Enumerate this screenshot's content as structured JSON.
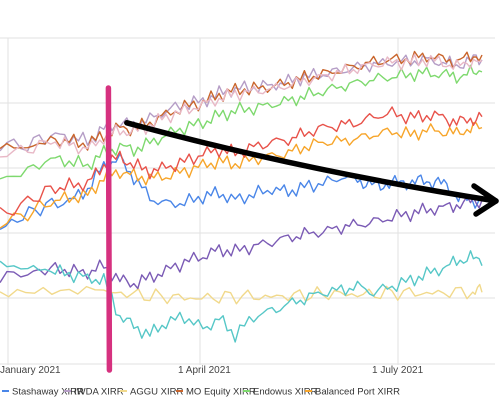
{
  "chart_data": {
    "type": "line",
    "title": "",
    "xlabel": "",
    "ylabel": "",
    "grid": true,
    "x_tick_labels": [
      "January 2021",
      "1 April 2021",
      "1 July 2021"
    ],
    "x_domain": [
      "2021-01-11",
      "2021-08-11"
    ],
    "y_domain": [
      -0.06,
      0.21
    ],
    "legend_position": "bottom",
    "series": [
      {
        "name": "Stashaway XIRR",
        "color": "#4a86e8",
        "points": [
          [
            0,
            0.052
          ],
          [
            10,
            0.063
          ],
          [
            20,
            0.072
          ],
          [
            30,
            0.075
          ],
          [
            38,
            0.085
          ],
          [
            45,
            0.105
          ],
          [
            52,
            0.11
          ],
          [
            58,
            0.095
          ],
          [
            65,
            0.078
          ],
          [
            72,
            0.073
          ],
          [
            80,
            0.074
          ],
          [
            88,
            0.079
          ],
          [
            95,
            0.082
          ],
          [
            102,
            0.076
          ],
          [
            110,
            0.081
          ],
          [
            118,
            0.085
          ],
          [
            125,
            0.083
          ],
          [
            132,
            0.087
          ],
          [
            140,
            0.09
          ],
          [
            148,
            0.095
          ],
          [
            155,
            0.093
          ],
          [
            160,
            0.089
          ],
          [
            165,
            0.088
          ],
          [
            170,
            0.091
          ],
          [
            175,
            0.09
          ],
          [
            180,
            0.092
          ],
          [
            185,
            0.091
          ],
          [
            190,
            0.092
          ],
          [
            195,
            0.085
          ],
          [
            200,
            0.078
          ],
          [
            205,
            0.075
          ],
          [
            209,
            0.077
          ]
        ]
      },
      {
        "name": "IWDA XIRR",
        "color": "#b59dc6",
        "points": [
          [
            0,
            0.12
          ],
          [
            12,
            0.122
          ],
          [
            22,
            0.13
          ],
          [
            30,
            0.128
          ],
          [
            38,
            0.125
          ],
          [
            45,
            0.135
          ],
          [
            52,
            0.14
          ],
          [
            58,
            0.138
          ],
          [
            65,
            0.143
          ],
          [
            72,
            0.15
          ],
          [
            80,
            0.155
          ],
          [
            88,
            0.158
          ],
          [
            95,
            0.164
          ],
          [
            102,
            0.168
          ],
          [
            110,
            0.169
          ],
          [
            118,
            0.171
          ],
          [
            125,
            0.174
          ],
          [
            132,
            0.178
          ],
          [
            140,
            0.18
          ],
          [
            148,
            0.183
          ],
          [
            155,
            0.186
          ],
          [
            162,
            0.188
          ],
          [
            170,
            0.19
          ],
          [
            178,
            0.191
          ],
          [
            185,
            0.192
          ],
          [
            192,
            0.19
          ],
          [
            198,
            0.187
          ],
          [
            204,
            0.192
          ],
          [
            209,
            0.192
          ]
        ]
      },
      {
        "name": "AGGU XIRR",
        "color": "#f1d98b",
        "points": [
          [
            0,
            -0.002
          ],
          [
            15,
            -0.001
          ],
          [
            30,
            -0.002
          ],
          [
            45,
            0.0
          ],
          [
            55,
            -0.001
          ],
          [
            65,
            -0.003
          ],
          [
            75,
            -0.004
          ],
          [
            85,
            -0.005
          ],
          [
            95,
            -0.004
          ],
          [
            105,
            -0.003
          ],
          [
            115,
            -0.004
          ],
          [
            125,
            -0.003
          ],
          [
            135,
            -0.002
          ],
          [
            145,
            -0.001
          ],
          [
            155,
            -0.002
          ],
          [
            165,
            -0.001
          ],
          [
            175,
            0.0
          ],
          [
            185,
            -0.001
          ],
          [
            195,
            0.0
          ],
          [
            205,
            0.001
          ],
          [
            209,
            0.0
          ]
        ]
      },
      {
        "name": "MO Equity XIRR",
        "color": "#c9652c",
        "points": [
          [
            0,
            0.118
          ],
          [
            12,
            0.12
          ],
          [
            22,
            0.126
          ],
          [
            30,
            0.125
          ],
          [
            38,
            0.122
          ],
          [
            45,
            0.13
          ],
          [
            52,
            0.136
          ],
          [
            58,
            0.135
          ],
          [
            65,
            0.14
          ],
          [
            72,
            0.147
          ],
          [
            80,
            0.153
          ],
          [
            88,
            0.157
          ],
          [
            95,
            0.163
          ],
          [
            102,
            0.167
          ],
          [
            110,
            0.168
          ],
          [
            118,
            0.17
          ],
          [
            125,
            0.173
          ],
          [
            132,
            0.177
          ],
          [
            140,
            0.18
          ],
          [
            148,
            0.184
          ],
          [
            155,
            0.187
          ],
          [
            162,
            0.19
          ],
          [
            170,
            0.192
          ],
          [
            178,
            0.193
          ],
          [
            185,
            0.195
          ],
          [
            192,
            0.193
          ],
          [
            198,
            0.19
          ],
          [
            204,
            0.195
          ],
          [
            209,
            0.196
          ]
        ]
      },
      {
        "name": "Endowus XIRR",
        "color": "#7ed96e",
        "points": [
          [
            0,
            0.095
          ],
          [
            12,
            0.1
          ],
          [
            22,
            0.11
          ],
          [
            30,
            0.108
          ],
          [
            38,
            0.105
          ],
          [
            45,
            0.115
          ],
          [
            52,
            0.12
          ],
          [
            58,
            0.118
          ],
          [
            65,
            0.123
          ],
          [
            72,
            0.13
          ],
          [
            80,
            0.136
          ],
          [
            88,
            0.14
          ],
          [
            95,
            0.146
          ],
          [
            102,
            0.15
          ],
          [
            110,
            0.152
          ],
          [
            118,
            0.155
          ],
          [
            125,
            0.158
          ],
          [
            132,
            0.162
          ],
          [
            140,
            0.166
          ],
          [
            148,
            0.17
          ],
          [
            155,
            0.173
          ],
          [
            162,
            0.176
          ],
          [
            170,
            0.178
          ],
          [
            178,
            0.18
          ],
          [
            185,
            0.181
          ],
          [
            192,
            0.18
          ],
          [
            198,
            0.178
          ],
          [
            204,
            0.181
          ],
          [
            209,
            0.182
          ]
        ]
      },
      {
        "name": "Balanced Port XIRR",
        "color": "#f7a52a",
        "points": [
          [
            0,
            0.055
          ],
          [
            12,
            0.065
          ],
          [
            22,
            0.075
          ],
          [
            30,
            0.078
          ],
          [
            38,
            0.08
          ],
          [
            45,
            0.095
          ],
          [
            52,
            0.1
          ],
          [
            58,
            0.096
          ],
          [
            65,
            0.094
          ],
          [
            72,
            0.096
          ],
          [
            80,
            0.1
          ],
          [
            88,
            0.105
          ],
          [
            95,
            0.108
          ],
          [
            102,
            0.106
          ],
          [
            110,
            0.11
          ],
          [
            118,
            0.113
          ],
          [
            125,
            0.115
          ],
          [
            132,
            0.12
          ],
          [
            140,
            0.124
          ],
          [
            148,
            0.125
          ],
          [
            155,
            0.127
          ],
          [
            162,
            0.13
          ],
          [
            170,
            0.133
          ],
          [
            178,
            0.13
          ],
          [
            185,
            0.134
          ],
          [
            192,
            0.133
          ],
          [
            198,
            0.131
          ],
          [
            204,
            0.136
          ],
          [
            209,
            0.136
          ]
        ]
      },
      {
        "name": "",
        "color": "#e8524a",
        "points": [
          [
            0,
            0.065
          ],
          [
            12,
            0.075
          ],
          [
            22,
            0.085
          ],
          [
            30,
            0.088
          ],
          [
            38,
            0.09
          ],
          [
            45,
            0.105
          ],
          [
            52,
            0.112
          ],
          [
            58,
            0.105
          ],
          [
            65,
            0.1
          ],
          [
            72,
            0.103
          ],
          [
            80,
            0.108
          ],
          [
            88,
            0.114
          ],
          [
            95,
            0.118
          ],
          [
            102,
            0.115
          ],
          [
            110,
            0.12
          ],
          [
            118,
            0.124
          ],
          [
            125,
            0.126
          ],
          [
            132,
            0.131
          ],
          [
            140,
            0.136
          ],
          [
            148,
            0.138
          ],
          [
            155,
            0.14
          ],
          [
            162,
            0.145
          ],
          [
            170,
            0.148
          ],
          [
            178,
            0.144
          ],
          [
            185,
            0.146
          ],
          [
            192,
            0.145
          ],
          [
            198,
            0.14
          ],
          [
            204,
            0.143
          ],
          [
            209,
            0.145
          ]
        ]
      },
      {
        "name": "",
        "color": "#7b5bb5",
        "points": [
          [
            0,
            0.012
          ],
          [
            12,
            0.015
          ],
          [
            22,
            0.02
          ],
          [
            30,
            0.018
          ],
          [
            38,
            0.016
          ],
          [
            45,
            0.022
          ],
          [
            52,
            0.01
          ],
          [
            58,
            0.007
          ],
          [
            65,
            0.012
          ],
          [
            72,
            0.018
          ],
          [
            80,
            0.025
          ],
          [
            88,
            0.03
          ],
          [
            95,
            0.035
          ],
          [
            102,
            0.034
          ],
          [
            110,
            0.038
          ],
          [
            118,
            0.042
          ],
          [
            125,
            0.045
          ],
          [
            132,
            0.048
          ],
          [
            140,
            0.05
          ],
          [
            148,
            0.054
          ],
          [
            155,
            0.056
          ],
          [
            162,
            0.058
          ],
          [
            170,
            0.062
          ],
          [
            178,
            0.065
          ],
          [
            185,
            0.068
          ],
          [
            192,
            0.07
          ],
          [
            198,
            0.072
          ],
          [
            204,
            0.075
          ],
          [
            209,
            0.076
          ]
        ]
      },
      {
        "name": "",
        "color": "#56c7c7",
        "points": [
          [
            0,
            0.025
          ],
          [
            12,
            0.02
          ],
          [
            22,
            0.018
          ],
          [
            30,
            0.015
          ],
          [
            38,
            0.012
          ],
          [
            45,
            0.01
          ],
          [
            52,
            -0.02
          ],
          [
            58,
            -0.028
          ],
          [
            65,
            -0.035
          ],
          [
            72,
            -0.025
          ],
          [
            80,
            -0.02
          ],
          [
            88,
            -0.03
          ],
          [
            95,
            -0.022
          ],
          [
            102,
            -0.035
          ],
          [
            110,
            -0.02
          ],
          [
            118,
            -0.015
          ],
          [
            125,
            -0.01
          ],
          [
            132,
            -0.005
          ],
          [
            140,
            0.0
          ],
          [
            148,
            0.002
          ],
          [
            155,
            0.005
          ],
          [
            162,
            0.0
          ],
          [
            170,
            0.005
          ],
          [
            178,
            0.01
          ],
          [
            185,
            0.015
          ],
          [
            192,
            0.02
          ],
          [
            198,
            0.025
          ],
          [
            204,
            0.03
          ],
          [
            209,
            0.022
          ]
        ]
      },
      {
        "name": "",
        "color": "#e8b8c6",
        "points": [
          [
            0,
            0.112
          ],
          [
            12,
            0.118
          ],
          [
            22,
            0.125
          ],
          [
            30,
            0.122
          ],
          [
            38,
            0.118
          ],
          [
            45,
            0.128
          ],
          [
            52,
            0.134
          ],
          [
            58,
            0.132
          ],
          [
            65,
            0.138
          ],
          [
            72,
            0.145
          ],
          [
            80,
            0.15
          ],
          [
            88,
            0.155
          ],
          [
            95,
            0.16
          ],
          [
            102,
            0.164
          ],
          [
            110,
            0.166
          ],
          [
            118,
            0.168
          ],
          [
            125,
            0.171
          ],
          [
            132,
            0.175
          ],
          [
            140,
            0.178
          ],
          [
            148,
            0.182
          ],
          [
            155,
            0.185
          ],
          [
            162,
            0.188
          ],
          [
            170,
            0.19
          ],
          [
            178,
            0.19
          ],
          [
            185,
            0.192
          ],
          [
            192,
            0.19
          ],
          [
            198,
            0.186
          ],
          [
            204,
            0.191
          ],
          [
            209,
            0.191
          ]
        ]
      }
    ],
    "vertical_marker": {
      "x": 47,
      "color": "#d6317f"
    },
    "arrow": {
      "from": [
        55,
        0.14
      ],
      "to": [
        209,
        0.095
      ],
      "color": "#000000"
    }
  }
}
